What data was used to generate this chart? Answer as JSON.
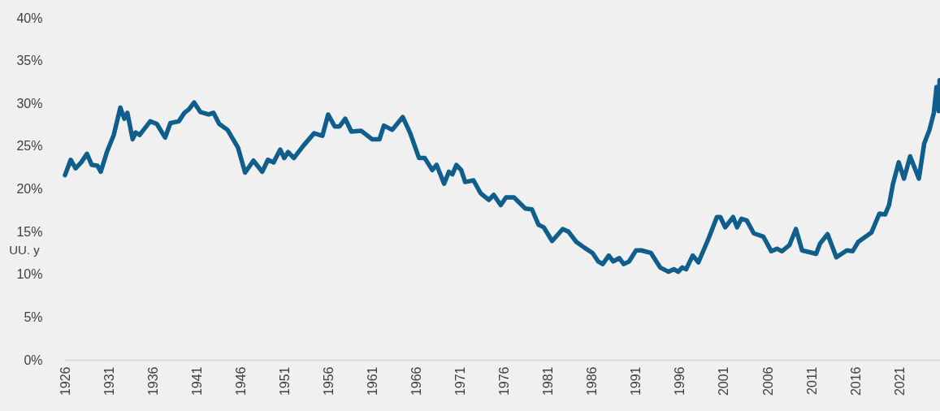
{
  "chart_data": {
    "type": "line",
    "x": [
      1926.0,
      1926.65,
      1927.2,
      1927.85,
      1928.5,
      1929.05,
      1929.7,
      1930.07,
      1930.8,
      1931.55,
      1932.3,
      1932.75,
      1933.1,
      1933.7,
      1934.05,
      1934.5,
      1935.7,
      1936.45,
      1937.4,
      1938.0,
      1938.95,
      1939.6,
      1940.1,
      1940.7,
      1941.4,
      1942.35,
      1942.9,
      1943.55,
      1944.5,
      1945.7,
      1946.5,
      1947.45,
      1948.45,
      1949.1,
      1949.75,
      1950.5,
      1950.95,
      1951.4,
      1952.05,
      1953.1,
      1954.35,
      1955.3,
      1955.95,
      1956.7,
      1957.25,
      1957.9,
      1958.6,
      1959.7,
      1960.95,
      1961.8,
      1962.3,
      1963.25,
      1964.45,
      1965.3,
      1966.3,
      1966.95,
      1967.8,
      1968.3,
      1969.15,
      1969.7,
      1970.1,
      1970.55,
      1971.1,
      1971.55,
      1972.5,
      1973.3,
      1974.25,
      1974.8,
      1975.6,
      1976.2,
      1977.1,
      1978.4,
      1979.15,
      1979.9,
      1980.5,
      1981.45,
      1982.65,
      1983.3,
      1984.2,
      1985.15,
      1986.05,
      1986.7,
      1987.2,
      1987.9,
      1988.4,
      1989.1,
      1989.6,
      1990.2,
      1991.0,
      1991.6,
      1992.7,
      1993.75,
      1994.7,
      1995.3,
      1995.8,
      1996.25,
      1996.7,
      1997.45,
      1998.1,
      1999.3,
      2000.2,
      2000.6,
      2001.15,
      2002.05,
      2002.5,
      2003.0,
      2003.6,
      2004.4,
      2005.5,
      2006.4,
      2007.05,
      2007.6,
      2008.45,
      2009.2,
      2009.9,
      2011.5,
      2011.95,
      2012.8,
      2013.8,
      2015.0,
      2015.65,
      2016.3,
      2017.8,
      2018.7,
      2019.35,
      2019.8,
      2020.25,
      2020.9,
      2021.5,
      2022.2,
      2023.2,
      2023.8,
      2024.4,
      2024.9,
      2025.2,
      2025.45,
      2025.55
    ],
    "series": [
      {
        "color": "#0f5e8c",
        "values": [
          21.6,
          23.4,
          22.4,
          23.1,
          24.1,
          22.8,
          22.7,
          22.0,
          24.4,
          26.3,
          29.5,
          28.2,
          28.9,
          25.8,
          26.6,
          26.3,
          27.9,
          27.6,
          26.0,
          27.7,
          27.9,
          28.9,
          29.3,
          30.1,
          29.0,
          28.7,
          28.9,
          27.6,
          26.9,
          24.8,
          21.9,
          23.3,
          22.0,
          23.4,
          23.1,
          24.6,
          23.6,
          24.3,
          23.6,
          25.0,
          26.5,
          26.2,
          28.7,
          27.3,
          27.3,
          28.2,
          26.7,
          26.8,
          25.8,
          25.8,
          27.4,
          26.9,
          28.4,
          26.5,
          23.6,
          23.6,
          22.2,
          22.8,
          20.6,
          22.0,
          21.7,
          22.8,
          22.2,
          20.8,
          21.0,
          19.5,
          18.7,
          19.3,
          18.1,
          19.0,
          19.0,
          17.7,
          17.6,
          15.8,
          15.5,
          13.9,
          15.3,
          15.0,
          13.8,
          13.1,
          12.5,
          11.5,
          11.2,
          12.2,
          11.5,
          11.9,
          11.2,
          11.5,
          12.8,
          12.8,
          12.5,
          10.8,
          10.3,
          10.6,
          10.3,
          10.8,
          10.6,
          12.2,
          11.4,
          14.3,
          16.7,
          16.7,
          15.5,
          16.7,
          15.5,
          16.5,
          16.3,
          14.8,
          14.4,
          12.7,
          13.0,
          12.7,
          13.4,
          15.3,
          12.8,
          12.4,
          13.6,
          14.7,
          12.0,
          12.8,
          12.7,
          13.8,
          14.9,
          17.1,
          17.0,
          18.1,
          20.6,
          23.1,
          21.2,
          23.8,
          21.2,
          25.3,
          26.9,
          28.9,
          31.9,
          29.1,
          32.7
        ]
      }
    ],
    "xlim": [
      1926,
      2025.6
    ],
    "xticks": [
      1926,
      1931,
      1936,
      1941,
      1946,
      1951,
      1956,
      1961,
      1966,
      1971,
      1976,
      1981,
      1986,
      1991,
      1996,
      2001,
      2006,
      2011,
      2016,
      2021
    ],
    "ylim": [
      0,
      40
    ],
    "yticks": [
      {
        "value": 0,
        "label": "0%"
      },
      {
        "value": 5,
        "label": "5%"
      },
      {
        "value": 10,
        "label": "10%"
      },
      {
        "value": 15,
        "label": "15%"
      },
      {
        "value": 20,
        "label": "20%"
      },
      {
        "value": 25,
        "label": "25%"
      },
      {
        "value": 30,
        "label": "30%"
      },
      {
        "value": 35,
        "label": "35%"
      },
      {
        "value": 40,
        "label": "40%"
      }
    ],
    "grid": false,
    "annotations": [
      "UU. y"
    ]
  }
}
